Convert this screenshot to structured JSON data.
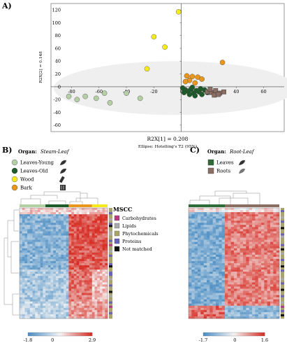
{
  "colors": {
    "leaves_young": "#b5cfa5",
    "leaves_old": "#1f5a2a",
    "wood": "#f5ea1c",
    "bark": "#e8961c",
    "leaves": "#2e6b36",
    "roots": "#8a6d63",
    "mscc_carbohydrates": "#b33d82",
    "mscc_lipids": "#a9a9a9",
    "mscc_phytochemicals": "#a9a36c",
    "mscc_proteins": "#6a63b5",
    "mscc_not_matched": "#111111",
    "heat_low": "#4e8fc4",
    "heat_mid": "#f5f5f5",
    "heat_high": "#d73027"
  },
  "panels": {
    "a_label": "A)",
    "b_label": "B)",
    "c_label": "C)"
  },
  "chart_data": [
    {
      "type": "scatter",
      "xlabel": "R2X[1] = 0.208",
      "ylabel": "R2X[2] = 0.148",
      "xlim": [
        -95,
        75
      ],
      "ylim": [
        -70,
        130
      ],
      "xticks": [
        -80,
        -60,
        -40,
        -20,
        0,
        20,
        40,
        60
      ],
      "yticks": [
        -60,
        -40,
        -20,
        0,
        20,
        40,
        60,
        80,
        100,
        120
      ],
      "ellipse_note": "Ellipse: Hotelling's T2 (95%)",
      "series": [
        {
          "name": "Leaves-Young",
          "points": [
            [
              -82,
              -15
            ],
            [
              -76,
              -20
            ],
            [
              -70,
              -15
            ],
            [
              -62,
              -18
            ],
            [
              -56,
              -10
            ],
            [
              -52,
              -25
            ],
            [
              -40,
              -10
            ],
            [
              -30,
              -18
            ]
          ]
        },
        {
          "name": "Leaves-Old",
          "points": [
            [
              1,
              -2
            ],
            [
              3,
              -5
            ],
            [
              5,
              -7
            ],
            [
              7,
              -4
            ],
            [
              9,
              -10
            ],
            [
              11,
              -6
            ],
            [
              13,
              -8
            ],
            [
              15,
              -12
            ],
            [
              17,
              -5
            ],
            [
              19,
              -9
            ],
            [
              6,
              -12
            ],
            [
              10,
              -14
            ],
            [
              14,
              -3
            ],
            [
              2,
              -9
            ],
            [
              8,
              -1
            ]
          ]
        },
        {
          "name": "Wood",
          "points": [
            [
              -2,
              117
            ],
            [
              -20,
              78
            ],
            [
              -12,
              62
            ],
            [
              -25,
              28
            ]
          ]
        },
        {
          "name": "Bark",
          "points": [
            [
              30,
              38
            ],
            [
              4,
              17
            ],
            [
              8,
              16
            ],
            [
              12,
              15
            ],
            [
              15,
              12
            ],
            [
              6,
              10
            ],
            [
              3,
              8
            ],
            [
              10,
              6
            ]
          ]
        },
        {
          "name": "Roots",
          "points": [
            [
              19,
              -8
            ],
            [
              22,
              -9
            ],
            [
              25,
              -6
            ],
            [
              28,
              -10
            ],
            [
              31,
              -8
            ],
            [
              24,
              -13
            ],
            [
              27,
              -12
            ],
            [
              21,
              -4
            ]
          ]
        }
      ]
    },
    {
      "type": "heatmap",
      "organ_label": "Organ:",
      "organ_group": "Steam-Leaf",
      "legend": [
        "Leaves-Young",
        "Leaves-Old",
        "Wood",
        "Bark"
      ],
      "scale_min": "-1.8",
      "scale_mid": "0",
      "scale_max": "2.9",
      "scale": [
        -1.8,
        0,
        2.9
      ],
      "column_groups": [
        "Leaves-Young",
        "Leaves-Old",
        "Bark",
        "Wood"
      ]
    },
    {
      "type": "heatmap",
      "organ_label": "Organ:",
      "organ_group": "Root-Leaf",
      "legend": [
        "Leaves",
        "Roots"
      ],
      "scale_min": "-1.7",
      "scale_mid": "0",
      "scale_max": "1.6",
      "scale": [
        -1.7,
        0,
        1.6
      ],
      "column_groups": [
        "Leaves",
        "Roots"
      ]
    }
  ],
  "mscc": {
    "title": "MSCC",
    "items": [
      "Carbohydrates",
      "Lipids",
      "Phytochemicals",
      "Proteins",
      "Not matched"
    ]
  }
}
